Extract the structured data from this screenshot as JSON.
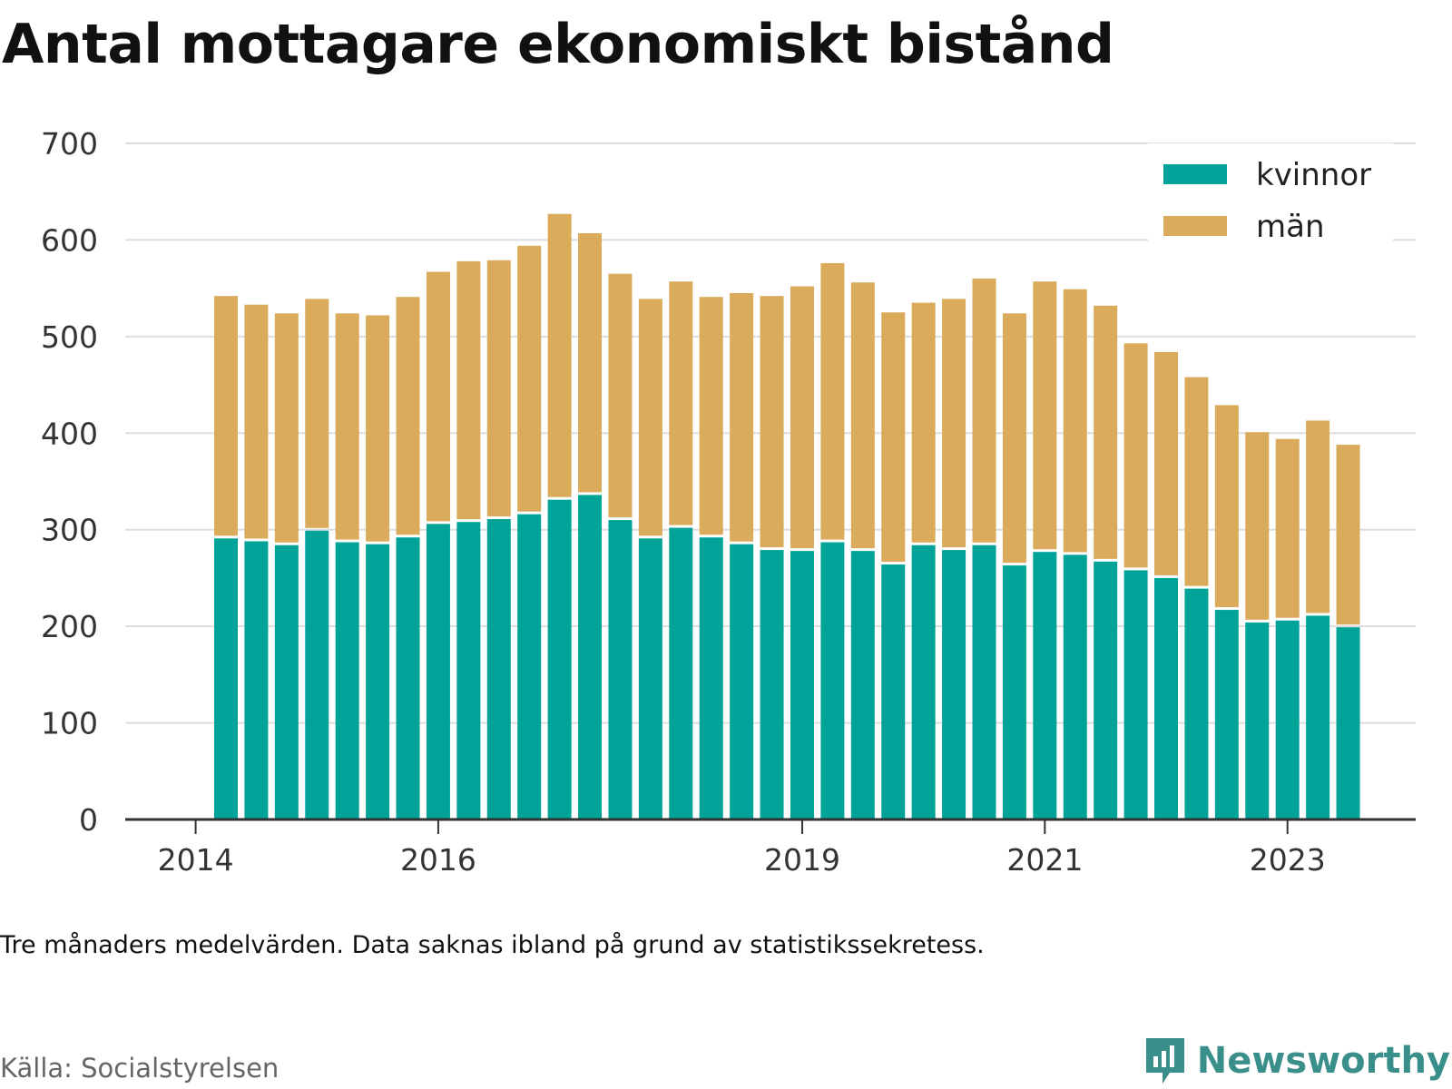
{
  "title": "Antal mottagare ekonomiskt bistånd",
  "note": "Tre månaders medelvärden. Data saknas ibland på grund av statistikssekretess.",
  "source": "Källa: Socialstyrelsen",
  "brand": {
    "name": "Newsworthy",
    "icon": "newsworthy-logo-icon"
  },
  "colors": {
    "kvinnor": "#00a398",
    "man": "#d9ab5a",
    "grid": "#dddddd",
    "axis": "#333333",
    "brand": "#3a8f8b"
  },
  "chart_data": {
    "type": "bar",
    "stacked": true,
    "ylim": [
      0,
      700
    ],
    "yticks": [
      0,
      100,
      200,
      300,
      400,
      500,
      600,
      700
    ],
    "x_tick_labels": [
      {
        "label": "2014",
        "bar_position": -1
      },
      {
        "label": "2016",
        "bar_position": 7
      },
      {
        "label": "2019",
        "bar_position": 19
      },
      {
        "label": "2021",
        "bar_position": 27
      },
      {
        "label": "2023",
        "bar_position": 35
      }
    ],
    "grid": true,
    "legend": "top-right",
    "series": [
      {
        "name": "kvinnor",
        "values": [
          291,
          288,
          284,
          299,
          287,
          285,
          292,
          306,
          308,
          311,
          316,
          331,
          336,
          310,
          291,
          302,
          292,
          285,
          279,
          278,
          287,
          278,
          264,
          284,
          279,
          284,
          263,
          277,
          274,
          267,
          258,
          250,
          239,
          217,
          204,
          206,
          211,
          199
        ]
      },
      {
        "name": "män",
        "values": [
          251,
          245,
          240,
          240,
          237,
          237,
          249,
          261,
          270,
          268,
          278,
          296,
          271,
          255,
          248,
          255,
          249,
          260,
          263,
          274,
          289,
          278,
          261,
          251,
          260,
          276,
          261,
          280,
          275,
          265,
          235,
          234,
          219,
          212,
          197,
          188,
          202,
          189
        ]
      }
    ]
  }
}
